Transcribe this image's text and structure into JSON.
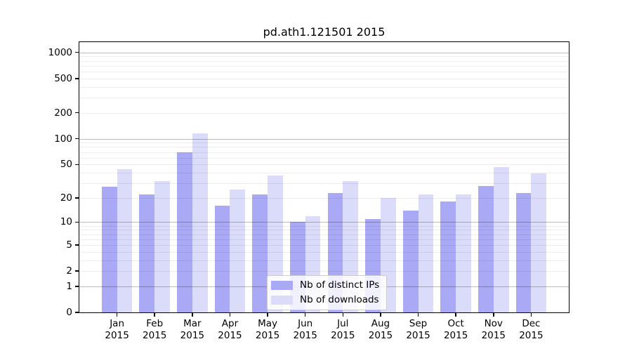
{
  "title": "pd.ath1.121501 2015",
  "colors": {
    "distinct_ips": "#a9a9f6",
    "downloads": "#dbdbfa",
    "grid_major": "rgba(0,0,0,0.26)",
    "grid_minor": "rgba(0,0,0,0.07)",
    "spine": "#000000",
    "text": "#000000"
  },
  "legend": {
    "items": [
      {
        "label": "Nb of distinct IPs",
        "color_key": "distinct_ips"
      },
      {
        "label": "Nb of downloads",
        "color_key": "downloads"
      }
    ]
  },
  "chart_data": {
    "type": "bar",
    "title": "pd.ath1.121501 2015",
    "categories": [
      "Jan 2015",
      "Feb 2015",
      "Mar 2015",
      "Apr 2015",
      "May 2015",
      "Jun 2015",
      "Jul 2015",
      "Aug 2015",
      "Sep 2015",
      "Oct 2015",
      "Nov 2015",
      "Dec 2015"
    ],
    "series": [
      {
        "name": "Nb of distinct IPs",
        "color_key": "distinct_ips",
        "values": [
          27,
          22,
          70,
          16,
          22,
          10,
          23,
          11,
          14,
          18,
          28,
          23
        ]
      },
      {
        "name": "Nb of downloads",
        "color_key": "downloads",
        "values": [
          44,
          32,
          115,
          25,
          37,
          12,
          32,
          20,
          22,
          22,
          47,
          39
        ]
      }
    ],
    "xlabel": "",
    "ylabel": "",
    "yscale": "log1p",
    "ylim": [
      0,
      1315
    ],
    "yticks": [
      0,
      1,
      2,
      5,
      10,
      20,
      50,
      100,
      200,
      500,
      1000
    ],
    "ytick_labels": [
      "0",
      "1",
      "2",
      "5",
      "10",
      "20",
      "50",
      "100",
      "200",
      "500",
      "1000"
    ],
    "grid": "on, minor+major, drawn above bars",
    "legend_position": "lower center"
  }
}
